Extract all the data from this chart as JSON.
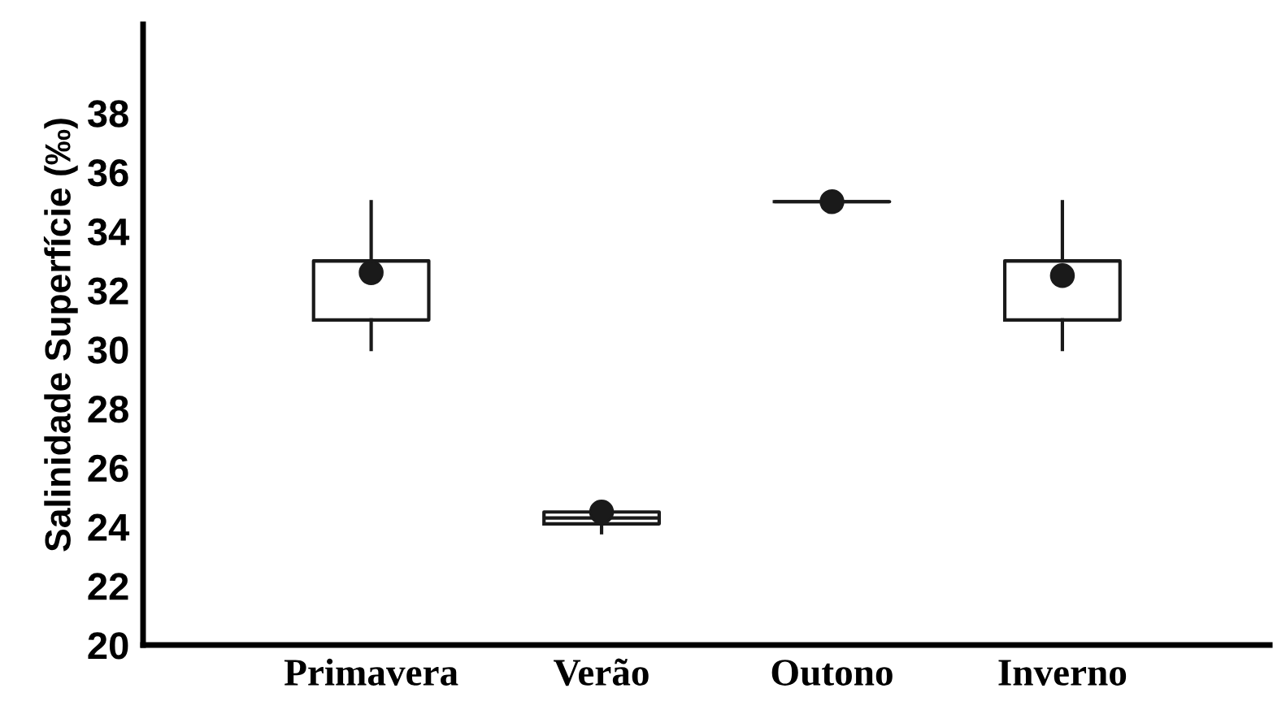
{
  "chart_data": {
    "type": "box",
    "ylabel": "Salinidade Superfície (‰)",
    "categories": [
      "Primavera",
      "Verão",
      "Outono",
      "Inverno"
    ],
    "boxes": [
      {
        "low": 30,
        "q1": 31,
        "median": 33,
        "q3": 33,
        "high": 35,
        "mean": 32.6
      },
      {
        "low": 23.8,
        "q1": 24.1,
        "median": 24.3,
        "q3": 24.5,
        "high": 24.5,
        "mean": 24.5
      },
      {
        "low": 35,
        "q1": 35,
        "median": 35,
        "q3": 35,
        "high": 35,
        "mean": 35
      },
      {
        "low": 30,
        "q1": 31,
        "median": 33,
        "q3": 33,
        "high": 35,
        "mean": 32.5
      }
    ],
    "color": "#1a1a1a",
    "ylim": [
      20,
      41
    ],
    "yticks": [
      20,
      22,
      24,
      26,
      28,
      30,
      32,
      34,
      36,
      38
    ],
    "grid": false,
    "marker": "circle"
  }
}
